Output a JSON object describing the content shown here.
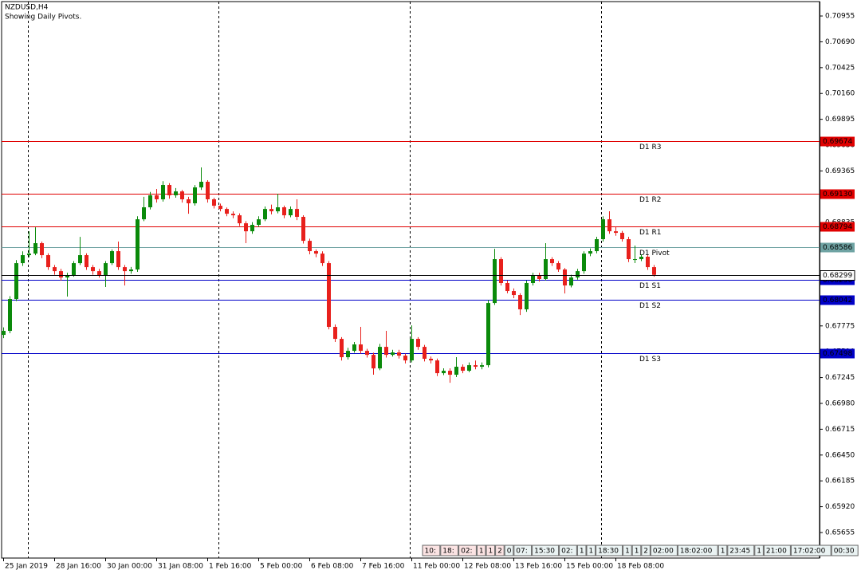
{
  "chart_data": {
    "type": "candlestick",
    "title": "NZDUSD,H4",
    "subtitle": "Showing Daily Pivots.",
    "categories": [
      "25 Jan 2019",
      null,
      null,
      null,
      null,
      null,
      null,
      null,
      "28 Jan 16:00",
      null,
      null,
      null,
      null,
      null,
      null,
      null,
      "30 Jan 00:00",
      null,
      null,
      null,
      null,
      null,
      null,
      null,
      "31 Jan 08:00",
      null,
      null,
      null,
      null,
      null,
      null,
      null,
      "1 Feb 16:00",
      null,
      null,
      null,
      null,
      null,
      null,
      null,
      "5 Feb 00:00",
      null,
      null,
      null,
      null,
      null,
      null,
      null,
      "6 Feb 08:00",
      null,
      null,
      null,
      null,
      null,
      null,
      null,
      "7 Feb 16:00",
      null,
      null,
      null,
      null,
      null,
      null,
      null,
      "11 Feb 00:00",
      null,
      null,
      null,
      null,
      null,
      null,
      null,
      "12 Feb 08:00",
      null,
      null,
      null,
      null,
      null,
      null,
      null,
      "13 Feb 16:00",
      null,
      null,
      null,
      null,
      null,
      null,
      null,
      "15 Feb 00:00",
      null,
      null,
      null,
      null,
      null,
      null,
      null,
      "18 Feb 08:00",
      null,
      null,
      null,
      null,
      null,
      null
    ],
    "open": [
      0.67683,
      0.67724,
      0.68051,
      0.68419,
      0.68501,
      0.68517,
      0.68624,
      0.68501,
      0.68378,
      0.68337,
      0.68272,
      0.68297,
      0.68419,
      0.68501,
      0.68378,
      0.68337,
      0.68297,
      0.68419,
      0.68542,
      0.68378,
      0.68337,
      0.68354,
      0.68869,
      0.68992,
      0.69115,
      0.69074,
      0.69221,
      0.69115,
      0.69155,
      0.69074,
      0.69033,
      0.69196,
      0.69254,
      0.69074,
      0.69008,
      0.68975,
      0.68926,
      0.6891,
      0.68828,
      0.68746,
      0.68812,
      0.68869,
      0.68975,
      0.68951,
      0.68992,
      0.6891,
      0.68975,
      0.68894,
      0.68648,
      0.68542,
      0.68517,
      0.68419,
      0.67765,
      0.67642,
      0.67454,
      0.67519,
      0.67585,
      0.67519,
      0.67478,
      0.67339,
      0.6756,
      0.67478,
      0.67503,
      0.6747,
      0.67421,
      0.67642,
      0.6756,
      0.67438,
      0.67421,
      0.6729,
      0.67315,
      0.67274,
      0.67356,
      0.67315,
      0.67372,
      0.67356,
      0.67372,
      0.6801,
      0.6846,
      0.68215,
      0.68133,
      0.68092,
      0.67945,
      0.68215,
      0.68297,
      0.68256,
      0.6846,
      0.68419,
      0.68354,
      0.6819,
      0.68272,
      0.68337,
      0.68517,
      0.68542,
      0.68665,
      0.68869,
      0.68746,
      0.6873,
      0.68665,
      0.6846,
      0.6846,
      0.68485,
      0.68378
    ],
    "high": [
      0.6776,
      0.6808,
      0.6845,
      0.6854,
      0.68746,
      0.68787,
      0.6864,
      0.6852,
      0.684,
      0.6836,
      0.6832,
      0.6844,
      0.68689,
      0.6852,
      0.684,
      0.6836,
      0.6844,
      0.6856,
      0.6864,
      0.684,
      0.6838,
      0.689,
      0.691,
      0.6915,
      0.6918,
      0.6926,
      0.6924,
      0.6919,
      0.6917,
      0.691,
      0.6922,
      0.69401,
      0.6927,
      0.6909,
      0.6903,
      0.6899,
      0.6895,
      0.6893,
      0.6885,
      0.6884,
      0.689,
      0.69,
      0.6902,
      0.69131,
      0.6901,
      0.69,
      0.69074,
      0.6891,
      0.6867,
      0.6856,
      0.6854,
      0.6844,
      0.6779,
      0.6766,
      0.6755,
      0.6761,
      0.67765,
      0.6754,
      0.675,
      0.6759,
      0.67724,
      0.6753,
      0.6753,
      0.6749,
      0.67781,
      0.6766,
      0.6758,
      0.6746,
      0.6744,
      0.6734,
      0.6734,
      0.67454,
      0.6738,
      0.674,
      0.6742,
      0.674,
      0.6804,
      0.68566,
      0.6848,
      0.6824,
      0.6816,
      0.6811,
      0.6824,
      0.6832,
      0.6832,
      0.68624,
      0.6848,
      0.6844,
      0.6837,
      0.683,
      0.6836,
      0.6854,
      0.6857,
      0.6869,
      0.689,
      0.68951,
      0.6879,
      0.6875,
      0.6869,
      0.686,
      0.6851,
      0.685,
      0.684
    ],
    "low": [
      0.6765,
      0.677,
      0.6803,
      0.6839,
      0.6848,
      0.685,
      0.6847,
      0.6835,
      0.683,
      0.6824,
      0.68076,
      0.6828,
      0.684,
      0.6835,
      0.683,
      0.6827,
      0.68174,
      0.684,
      0.6835,
      0.6819,
      0.6831,
      0.6833,
      0.6885,
      0.6897,
      0.6904,
      0.6905,
      0.6908,
      0.6909,
      0.6904,
      0.68926,
      0.6901,
      0.6917,
      0.6904,
      0.6898,
      0.6895,
      0.689,
      0.6888,
      0.688,
      0.68624,
      0.6872,
      0.6879,
      0.6885,
      0.6892,
      0.6893,
      0.6888,
      0.6889,
      0.6886,
      0.6862,
      0.6851,
      0.6848,
      0.6839,
      0.6774,
      0.6761,
      0.6742,
      0.6743,
      0.675,
      0.6749,
      0.6745,
      0.67274,
      0.6732,
      0.6745,
      0.6746,
      0.6744,
      0.6739,
      0.674,
      0.6753,
      0.6741,
      0.6739,
      0.6726,
      0.6727,
      0.67192,
      0.6725,
      0.6729,
      0.673,
      0.6733,
      0.6733,
      0.6735,
      0.6799,
      0.6819,
      0.6811,
      0.6806,
      0.67887,
      0.6792,
      0.6819,
      0.6823,
      0.6824,
      0.6839,
      0.6833,
      0.68108,
      0.6817,
      0.6825,
      0.6831,
      0.6849,
      0.6852,
      0.6864,
      0.6872,
      0.687,
      0.6864,
      0.6843,
      0.6842,
      0.6844,
      0.6835,
      0.6828
    ],
    "close": [
      0.67724,
      0.68051,
      0.68419,
      0.68501,
      0.68517,
      0.68624,
      0.68501,
      0.68378,
      0.68337,
      0.68272,
      0.68297,
      0.68419,
      0.68501,
      0.68378,
      0.68337,
      0.68297,
      0.68419,
      0.68542,
      0.68378,
      0.68337,
      0.68354,
      0.68869,
      0.68992,
      0.69115,
      0.69074,
      0.69221,
      0.69115,
      0.69155,
      0.69074,
      0.69033,
      0.69196,
      0.69254,
      0.69074,
      0.69008,
      0.68975,
      0.68926,
      0.6891,
      0.68828,
      0.68746,
      0.68812,
      0.68869,
      0.68975,
      0.68951,
      0.68992,
      0.6891,
      0.68975,
      0.68894,
      0.68648,
      0.68542,
      0.68517,
      0.68419,
      0.67765,
      0.67642,
      0.67454,
      0.67519,
      0.67585,
      0.67519,
      0.67478,
      0.67339,
      0.6756,
      0.67478,
      0.67503,
      0.6747,
      0.67421,
      0.67642,
      0.6756,
      0.67438,
      0.67421,
      0.6729,
      0.67315,
      0.67274,
      0.67356,
      0.67315,
      0.67372,
      0.67356,
      0.67372,
      0.6801,
      0.6846,
      0.68215,
      0.68133,
      0.68092,
      0.67945,
      0.68215,
      0.68297,
      0.68256,
      0.6846,
      0.68419,
      0.68354,
      0.6819,
      0.68272,
      0.68337,
      0.68517,
      0.68542,
      0.68665,
      0.68869,
      0.68746,
      0.6873,
      0.68665,
      0.6846,
      0.6846,
      0.68485,
      0.68378,
      0.68299
    ],
    "up_color": "#0a8a0a",
    "down_color": "#e8201c",
    "ylim": [
      0.65393,
      0.71119
    ],
    "yticks": [
      0.70955,
      {
        "value": 0.7069,
        "label": "0.70690"
      },
      0.70425,
      {
        "value": 0.7016,
        "label": "0.70160"
      },
      0.69895,
      {
        "value": 0.6963,
        "label": "0.69630"
      },
      0.69365,
      {
        "value": 0.691,
        "label": "0.69100"
      },
      0.68835,
      {
        "value": 0.6857,
        "label": "0.68570"
      },
      0.68305,
      {
        "value": 0.6804,
        "label": "0.68040"
      },
      0.67775,
      {
        "value": 0.6751,
        "label": "0.67510"
      },
      0.67245,
      {
        "value": 0.6698,
        "label": "0.66980"
      },
      0.66715,
      {
        "value": 0.6645,
        "label": "0.66450"
      },
      0.66185,
      {
        "value": 0.6592,
        "label": "0.65920"
      },
      0.65655
    ],
    "levels": [
      {
        "name": "D1 R3",
        "value": 0.69674,
        "color": "#e00000"
      },
      {
        "name": "D1 R2",
        "value": {
          "value": 0.6913,
          "label": "0.69130"
        },
        "color": "#e00000"
      },
      {
        "name": "D1 R1",
        "value": 0.68794,
        "color": "#e00000"
      },
      {
        "name": "D1 Pivot",
        "value": 0.68586,
        "color": "#6fa3a3"
      },
      {
        "name": "D1 S1",
        "value": {
          "value": 0.6825,
          "label": "0.68250"
        },
        "color": "#0000c8"
      },
      {
        "name": "D1 S2",
        "value": 0.68042,
        "color": "#0000c8"
      },
      {
        "name": "D1 S3",
        "value": 0.67498,
        "color": "#0000c8"
      }
    ],
    "current_price": 0.68299,
    "toolbar": [
      "10:",
      "18:",
      "02:",
      "1",
      "1",
      "2",
      "0",
      "07:",
      "15:30",
      "02:",
      "1",
      "1",
      "18:30",
      "1",
      "1",
      "2",
      "02:00",
      "18:02:00",
      "1",
      "23:45",
      "1",
      "21:00",
      "17:02:00",
      "00:30"
    ]
  }
}
